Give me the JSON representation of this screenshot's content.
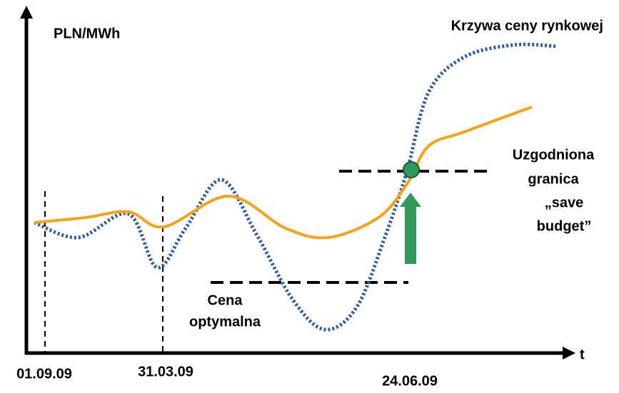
{
  "y_axis_label": "PLN/MWh",
  "x_axis_label": "t",
  "market_curve_label": "Krzywa ceny rynkowej",
  "agreed_limit_label": [
    "Uzgodniona",
    "granica",
    "„save",
    "budget”"
  ],
  "optimal_price_label": [
    "Cena",
    "optymalna"
  ],
  "dates": [
    "01.09.09",
    "31.03.09",
    "24.06.09"
  ]
}
